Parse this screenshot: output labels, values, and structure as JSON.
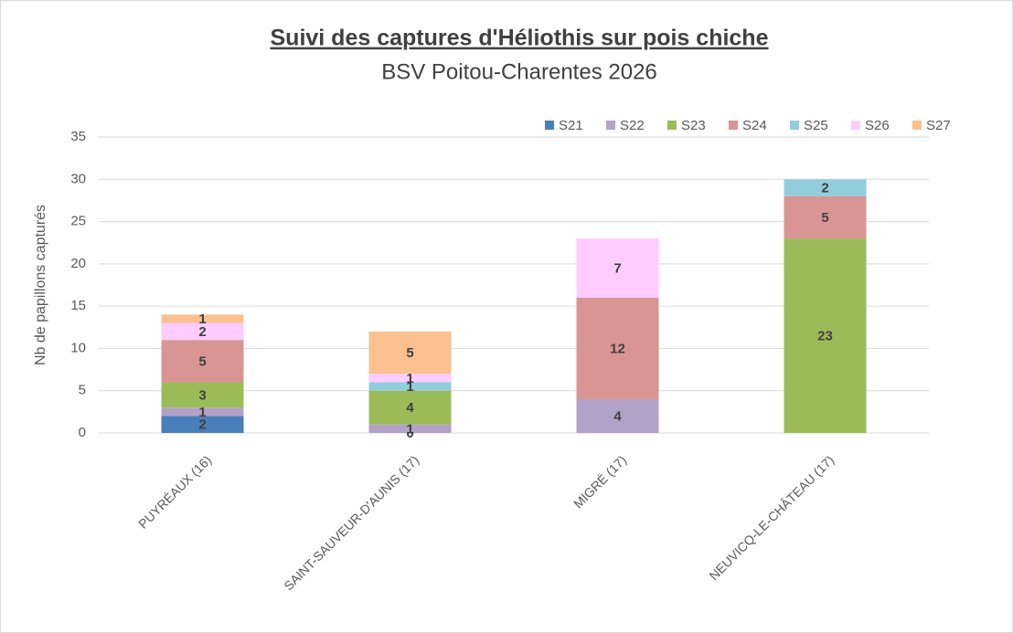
{
  "chart_data": {
    "type": "stacked_bar",
    "title": "Suivi des captures d'Héliothis sur pois chiche",
    "subtitle": "BSV Poitou-Charentes 2026",
    "y_label": "Nb de papillons capturés",
    "categories": [
      "PUYRÉAUX (16)",
      "SAINT-SAUVEUR-D'AUNIS (17)",
      "MIGRÉ (17)",
      "NEUVICQ-LE-CHÂTEAU (17)"
    ],
    "series": [
      {
        "name": "S21",
        "color": "#4a7ebb",
        "values": [
          2,
          0,
          null,
          null
        ]
      },
      {
        "name": "S22",
        "color": "#b3a2c7",
        "values": [
          1,
          1,
          4,
          null
        ]
      },
      {
        "name": "S23",
        "color": "#9bbb59",
        "values": [
          3,
          4,
          null,
          23
        ]
      },
      {
        "name": "S24",
        "color": "#d99594",
        "values": [
          5,
          null,
          12,
          5
        ]
      },
      {
        "name": "S25",
        "color": "#92cddc",
        "values": [
          null,
          1,
          null,
          2
        ]
      },
      {
        "name": "S26",
        "color": "#ffccff",
        "values": [
          2,
          1,
          7,
          null
        ]
      },
      {
        "name": "S27",
        "color": "#fac090",
        "values": [
          1,
          5,
          null,
          null
        ]
      }
    ],
    "ylim": [
      0,
      35
    ],
    "yticks": [
      0,
      5,
      10,
      15,
      20,
      25,
      30,
      35
    ],
    "grid": true,
    "legend": "top-right"
  }
}
